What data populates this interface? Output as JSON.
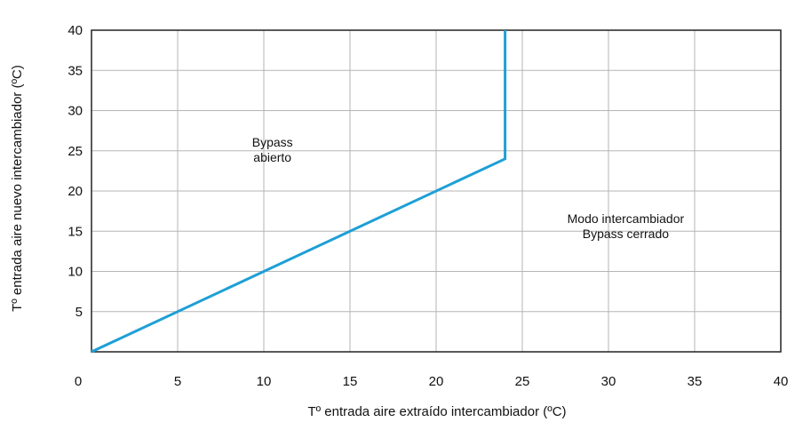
{
  "chart_data": {
    "type": "line",
    "xlabel": "Tº entrada aire extraído intercambiador (ºC)",
    "ylabel": "Tº entrada aire nuevo intercambiador (ºC)",
    "xlim": [
      0,
      40
    ],
    "ylim": [
      0,
      40
    ],
    "x_ticks": [
      "0",
      "5",
      "10",
      "15",
      "20",
      "25",
      "30",
      "35",
      "40"
    ],
    "y_ticks": [
      "5",
      "10",
      "15",
      "20",
      "25",
      "30",
      "35",
      "40"
    ],
    "grid": true,
    "series": [
      {
        "color": "#1e9fd6",
        "points": [
          [
            0,
            0
          ],
          [
            24,
            24
          ],
          [
            24,
            40
          ]
        ]
      }
    ],
    "annotations": [
      {
        "lines": [
          "Bypass",
          "abierto"
        ],
        "x": 10.5,
        "y": 25.5
      },
      {
        "lines": [
          "Modo intercambiador",
          "Bypass cerrado"
        ],
        "x": 31,
        "y": 16
      }
    ]
  }
}
